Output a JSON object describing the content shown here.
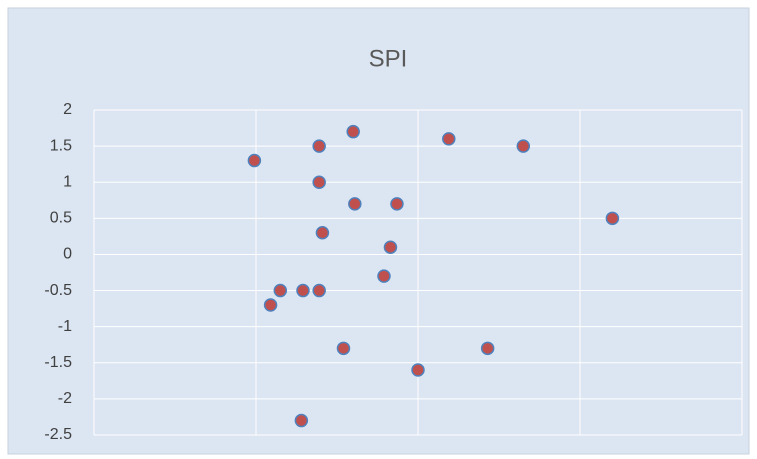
{
  "chart_data": {
    "type": "scatter",
    "title": "SPI",
    "series": [
      {
        "color": "#c0504d",
        "edge": "#4f81bd",
        "x": [
          0.99,
          1.09,
          1.15,
          1.29,
          1.39,
          1.28,
          1.39,
          1.39,
          1.41,
          1.54,
          1.6,
          1.61,
          1.79,
          1.83,
          1.87,
          2.0,
          2.19,
          2.43,
          2.65,
          3.2
        ],
        "values": [
          1.3,
          -0.7,
          -0.5,
          -0.5,
          -0.5,
          -2.3,
          1.5,
          1.0,
          0.3,
          -1.3,
          1.7,
          0.7,
          -0.3,
          0.1,
          0.7,
          -1.6,
          1.6,
          -1.3,
          1.5,
          0.5
        ]
      }
    ],
    "xlim": [
      0,
      4
    ],
    "xticks": [
      0,
      1,
      2,
      3,
      4
    ],
    "ylim": [
      -2.5,
      2
    ],
    "yticks": [
      -2.5,
      -2,
      -1.5,
      -1,
      -0.5,
      0,
      0.5,
      1,
      1.5,
      2
    ],
    "grid": true
  }
}
